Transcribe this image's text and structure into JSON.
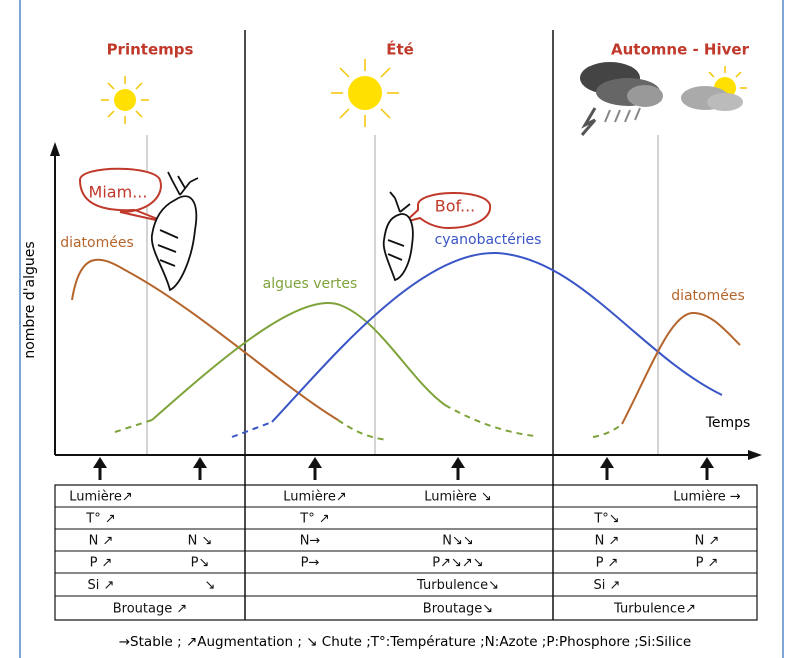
{
  "seasons": [
    "Printemps",
    "Été",
    "Automne - Hiver"
  ],
  "axis": {
    "y_label": "nombre d'algues",
    "x_label": "Temps"
  },
  "bubbles": [
    "Miam...",
    "Bof..."
  ],
  "curve_labels": [
    "diatomées",
    "algues vertes",
    "cyanobactéries",
    "diatomées"
  ],
  "table": {
    "rows": [
      [
        "Lumière↗",
        "Lumière↗",
        "Lumière ↘",
        "Lumière →"
      ],
      [
        "T° ↗",
        "T° ↗",
        "T°↘"
      ],
      [
        "N ↗",
        "N ↘",
        "N→",
        "N↘↘",
        "N ↗",
        "N ↗"
      ],
      [
        "P ↗",
        "P↘",
        "P→",
        "P↗↘↗↘",
        "P ↗",
        "P ↗"
      ],
      [
        "Si ↗",
        "↘",
        "Turbulence↘",
        "Si ↗"
      ],
      [
        "Broutage ↗",
        "Broutage↘",
        "Turbulence↗"
      ]
    ]
  },
  "legend": "→Stable ; ↗Augmentation ; ↘ Chute ;T°:Température ;N:Azote ;P:Phosphore ;Si:Silice"
}
